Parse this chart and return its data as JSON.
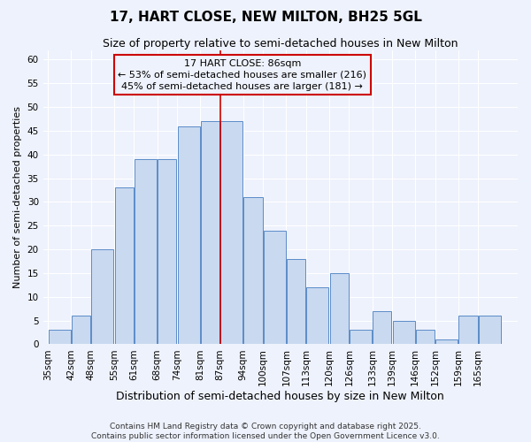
{
  "title": "17, HART CLOSE, NEW MILTON, BH25 5GL",
  "subtitle": "Size of property relative to semi-detached houses in New Milton",
  "xlabel": "Distribution of semi-detached houses by size in New Milton",
  "ylabel": "Number of semi-detached properties",
  "bin_labels": [
    "35sqm",
    "42sqm",
    "48sqm",
    "55sqm",
    "61sqm",
    "68sqm",
    "74sqm",
    "81sqm",
    "87sqm",
    "94sqm",
    "100sqm",
    "107sqm",
    "113sqm",
    "120sqm",
    "126sqm",
    "133sqm",
    "139sqm",
    "146sqm",
    "152sqm",
    "159sqm",
    "165sqm"
  ],
  "bin_edges": [
    35,
    42,
    48,
    55,
    61,
    68,
    74,
    81,
    87,
    94,
    100,
    107,
    113,
    120,
    126,
    133,
    139,
    146,
    152,
    159,
    165,
    172
  ],
  "counts": [
    3,
    6,
    20,
    33,
    39,
    39,
    46,
    47,
    47,
    31,
    24,
    18,
    12,
    15,
    3,
    7,
    5,
    3,
    1,
    6,
    6
  ],
  "bar_facecolor": "#c9d9f0",
  "bar_edgecolor": "#5b8cc8",
  "vline_x": 87,
  "vline_color": "#cc0000",
  "annotation_title": "17 HART CLOSE: 86sqm",
  "annotation_line1": "← 53% of semi-detached houses are smaller (216)",
  "annotation_line2": "45% of semi-detached houses are larger (181) →",
  "annotation_box_edgecolor": "#cc0000",
  "ylim": [
    0,
    62
  ],
  "yticks": [
    0,
    5,
    10,
    15,
    20,
    25,
    30,
    35,
    40,
    45,
    50,
    55,
    60
  ],
  "background_color": "#eef2fc",
  "footer1": "Contains HM Land Registry data © Crown copyright and database right 2025.",
  "footer2": "Contains public sector information licensed under the Open Government Licence v3.0.",
  "title_fontsize": 11,
  "subtitle_fontsize": 9,
  "xlabel_fontsize": 9,
  "ylabel_fontsize": 8,
  "tick_fontsize": 7.5,
  "annotation_fontsize": 8,
  "footer_fontsize": 6.5
}
